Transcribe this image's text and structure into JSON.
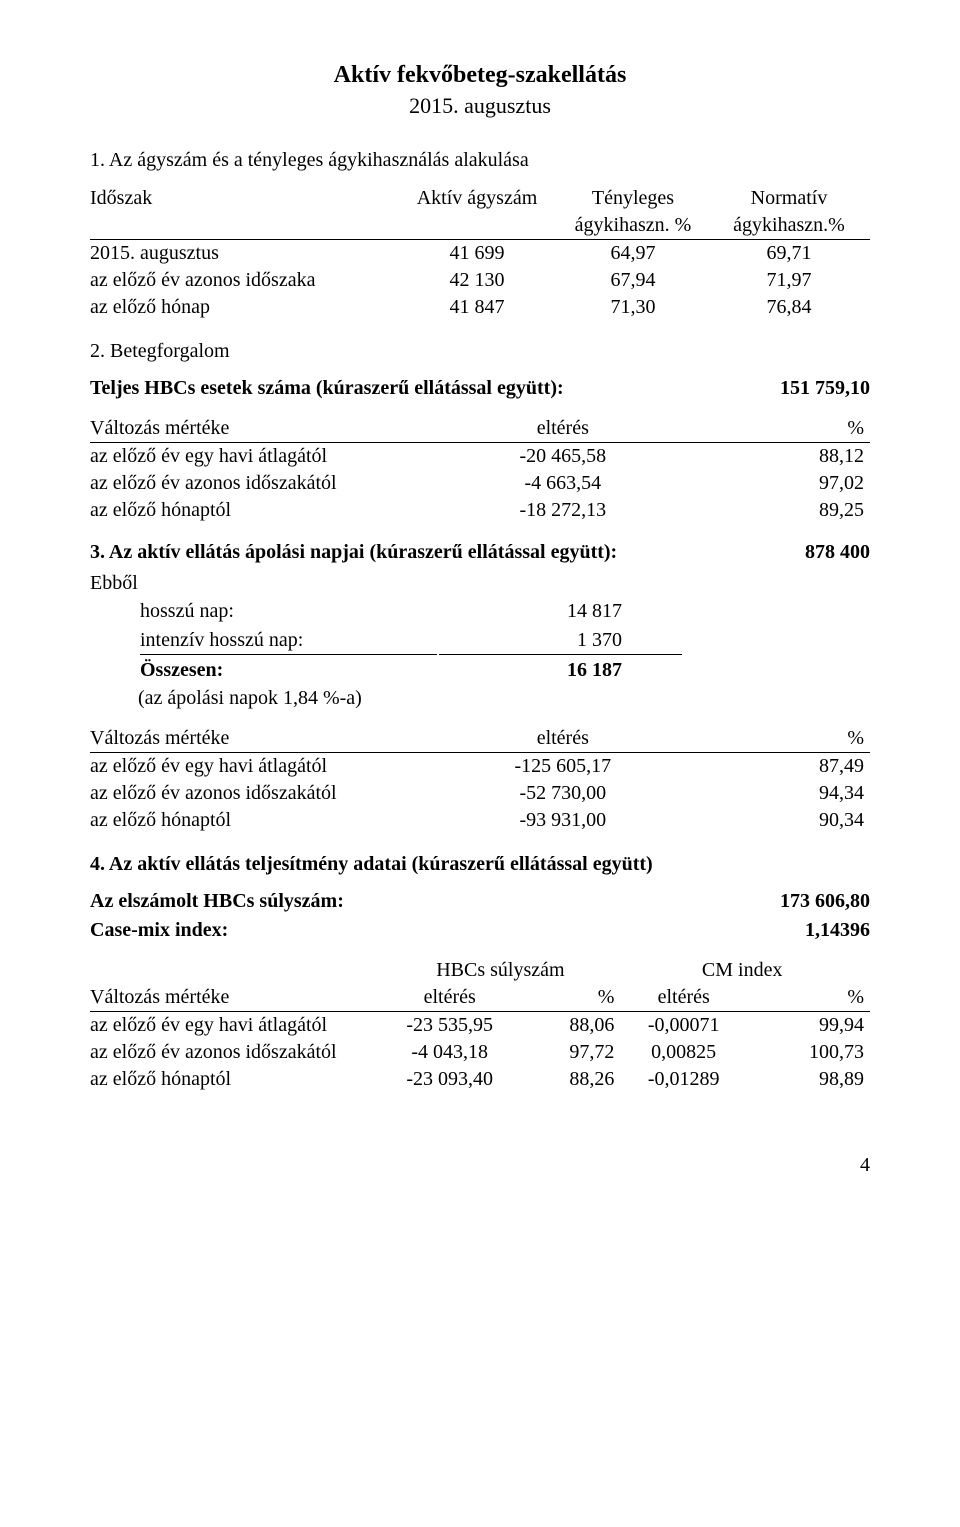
{
  "title": "Aktív fekvőbeteg-szakellátás",
  "subtitle": "2015. augusztus",
  "section1": {
    "heading": "1. Az ágyszám és a tényleges ágykihasználás alakulása",
    "colHeaders": {
      "period": "Időszak",
      "beds": "Aktív ágyszám",
      "actualTop": "Tényleges",
      "actualBot": "ágykihaszn. %",
      "normTop": "Normatív",
      "normBot": "ágykihaszn.%"
    },
    "rows": [
      {
        "label": "2015. augusztus",
        "beds": "41 699",
        "actual": "64,97",
        "norm": "69,71"
      },
      {
        "label": "az előző év azonos időszaka",
        "beds": "42 130",
        "actual": "67,94",
        "norm": "71,97"
      },
      {
        "label": "az előző hónap",
        "beds": "41 847",
        "actual": "71,30",
        "norm": "76,84"
      }
    ]
  },
  "section2": {
    "heading": "2. Betegforgalom",
    "kv": {
      "label": "Teljes HBCs esetek száma (kúraszerű ellátással együtt):",
      "value": "151 759,10"
    },
    "changeHeader": {
      "label": "Változás mértéke",
      "dev": "eltérés",
      "pct": "%"
    },
    "changes": [
      {
        "label": "az előző év egy havi átlagától",
        "dev": "-20 465,58",
        "pct": "88,12"
      },
      {
        "label": "az előző év azonos időszakától",
        "dev": "-4 663,54",
        "pct": "97,02"
      },
      {
        "label": "az előző hónaptól",
        "dev": "-18 272,13",
        "pct": "89,25"
      }
    ]
  },
  "section3": {
    "kv": {
      "label": "3. Az aktív ellátás ápolási napjai (kúraszerű ellátással együtt):",
      "value": "878 400"
    },
    "ebbolLabel": "Ebből",
    "ebbol": [
      {
        "label": "hosszú nap:",
        "value": "14 817",
        "underline": false,
        "bold": false
      },
      {
        "label": "intenzív hosszú nap:",
        "value": "1 370",
        "underline": true,
        "bold": false
      },
      {
        "label": "Összesen:",
        "value": "16 187",
        "underline": false,
        "bold": true
      }
    ],
    "ebbolFoot": "(az ápolási napok 1,84 %-a)",
    "changeHeader": {
      "label": "Változás mértéke",
      "dev": "eltérés",
      "pct": "%"
    },
    "changes": [
      {
        "label": "az előző év egy havi átlagától",
        "dev": "-125 605,17",
        "pct": "87,49"
      },
      {
        "label": "az előző év azonos időszakától",
        "dev": "-52 730,00",
        "pct": "94,34"
      },
      {
        "label": "az előző hónaptól",
        "dev": "-93 931,00",
        "pct": "90,34"
      }
    ]
  },
  "section4": {
    "heading": "4. Az aktív ellátás teljesítmény adatai (kúraszerű ellátással együtt)",
    "kv1": {
      "label": "Az elszámolt HBCs súlyszám:",
      "value": "173 606,80"
    },
    "kv2": {
      "label": "Case-mix index:",
      "value": "1,14396"
    },
    "groupHeaders": {
      "g1": "HBCs súlyszám",
      "g2": "CM index"
    },
    "colHeaders": {
      "label": "Változás mértéke",
      "dev": "eltérés",
      "pct": "%"
    },
    "rows": [
      {
        "label": "az előző év egy havi átlagától",
        "h_dev": "-23 535,95",
        "h_pct": "88,06",
        "c_dev": "-0,00071",
        "c_pct": "99,94"
      },
      {
        "label": "az előző év azonos időszakától",
        "h_dev": "-4 043,18",
        "h_pct": "97,72",
        "c_dev": "0,00825",
        "c_pct": "100,73"
      },
      {
        "label": "az előző hónaptól",
        "h_dev": "-23 093,40",
        "h_pct": "88,26",
        "c_dev": "-0,01289",
        "c_pct": "98,89"
      }
    ]
  },
  "pageNumber": "4"
}
